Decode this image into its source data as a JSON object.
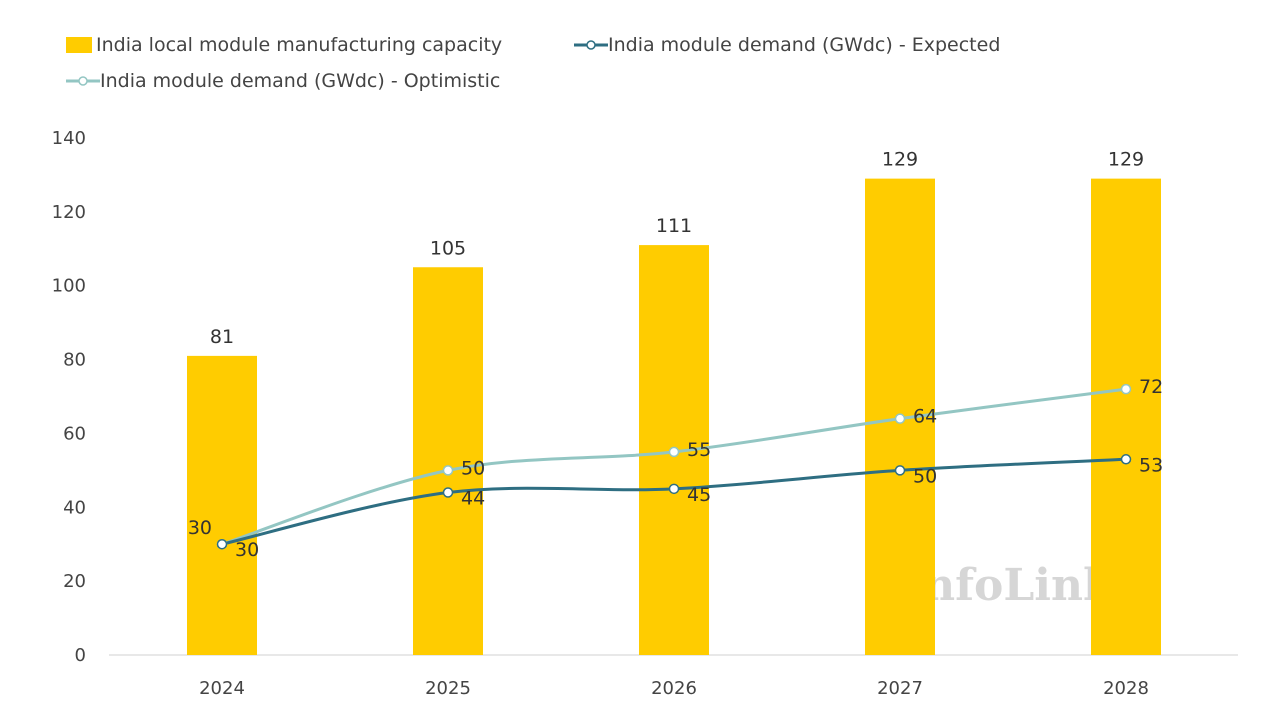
{
  "chart_data": {
    "type": "bar",
    "categories": [
      "2024",
      "2025",
      "2026",
      "2027",
      "2028"
    ],
    "ylim": [
      0,
      140
    ],
    "yticks": [
      0,
      20,
      40,
      60,
      80,
      100,
      120,
      140
    ],
    "grid": false,
    "legend_placement": "top-left",
    "series": [
      {
        "name": "India local module manufacturing capacity",
        "kind": "bar",
        "color": "#FFCC00",
        "values": [
          81,
          105,
          111,
          129,
          129
        ]
      },
      {
        "name": "India module demand (GWdc) - Expected",
        "kind": "line",
        "smooth": true,
        "color": "#2E6E82",
        "values": [
          30,
          44,
          45,
          50,
          53
        ]
      },
      {
        "name": "India module demand (GWdc) - Optimistic",
        "kind": "line",
        "smooth": true,
        "color": "#93C6C3",
        "values": [
          30,
          50,
          55,
          64,
          72
        ]
      }
    ],
    "watermark": "InfoLink"
  }
}
